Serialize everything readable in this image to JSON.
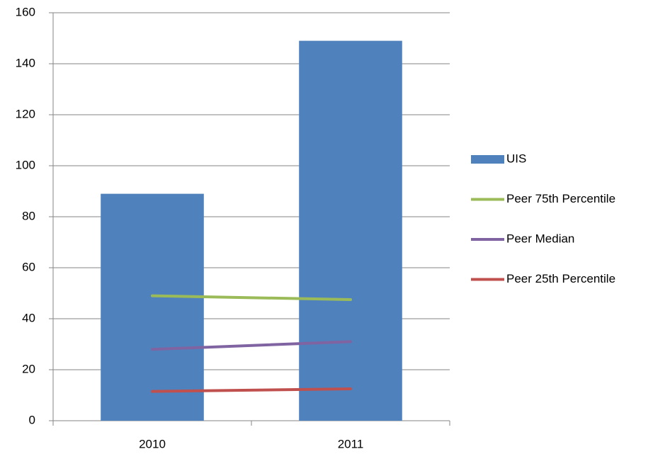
{
  "chart_data": {
    "type": "combo",
    "categories": [
      "2010",
      "2011"
    ],
    "series": [
      {
        "name": "UIS",
        "type": "bar",
        "color": "#4f81bd",
        "values": [
          89,
          149
        ]
      },
      {
        "name": "Peer 75th Percentile",
        "type": "line",
        "color": "#9bbb59",
        "values": [
          49,
          47.5
        ]
      },
      {
        "name": "Peer Median",
        "type": "line",
        "color": "#8064a2",
        "values": [
          28,
          31
        ]
      },
      {
        "name": "Peer 25th Percentile",
        "type": "line",
        "color": "#c0504d",
        "values": [
          11.5,
          12.5
        ]
      }
    ],
    "ylim": [
      0,
      160
    ],
    "yticks": [
      0,
      20,
      40,
      60,
      80,
      100,
      120,
      140,
      160
    ],
    "grid": true,
    "legend": "right"
  }
}
